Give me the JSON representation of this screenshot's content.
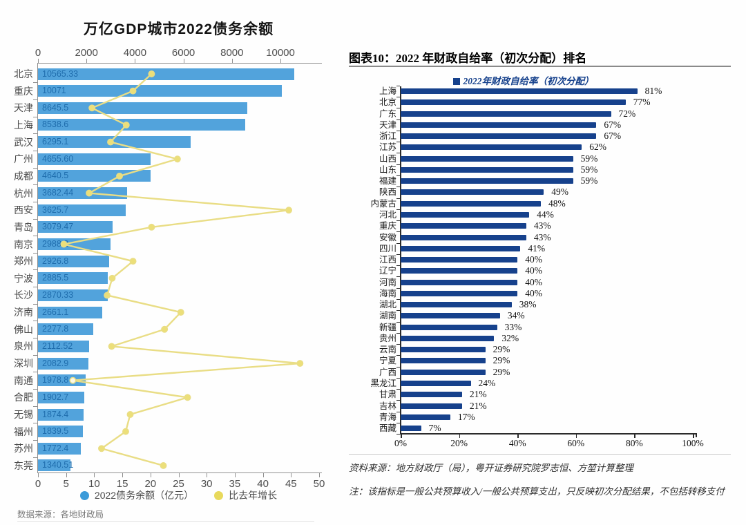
{
  "left_chart": {
    "title": "万亿GDP城市2022债务余额",
    "legend": {
      "debt": "2022债务余额（亿元）",
      "growth": "比去年增长"
    },
    "source": "数据来源：各地财政局",
    "colors": {
      "bar": "#52a3dc",
      "bar_label": "#1f6dad",
      "line": "#e9dd85",
      "point": "#ecdf79",
      "point_highlight": "#fcfae6",
      "legend_blue": "#3c9bd9",
      "legend_yellow": "#e8d95c"
    }
  },
  "right_chart": {
    "header": "图表10：2022 年财政自给率（初次分配）排名",
    "legend": "2022年财政自给率（初次分配）",
    "source": "资料来源：地方财政厅（局），粤开证券研究院罗志恒、方堃计算整理",
    "note": "注：该指标是一般公共预算收入/一般公共预算支出，只反映初次分配结果，不包括转移支付",
    "colors": {
      "bar": "#16418c",
      "text": "#16418c"
    }
  },
  "chart_data": [
    {
      "id": "debt-chart",
      "type": "bar",
      "orientation": "horizontal",
      "title": "万亿GDP城市2022债务余额",
      "categories": [
        "北京",
        "重庆",
        "天津",
        "上海",
        "武汉",
        "广州",
        "成都",
        "杭州",
        "西安",
        "青岛",
        "南京",
        "郑州",
        "宁波",
        "长沙",
        "济南",
        "佛山",
        "泉州",
        "深圳",
        "南通",
        "合肥",
        "无锡",
        "福州",
        "苏州",
        "东莞"
      ],
      "series": [
        {
          "name": "2022债务余额（亿元）",
          "type": "bar",
          "axis": "top",
          "values": [
            10565.33,
            10071,
            8645.5,
            8538.6,
            6295.1,
            4655.6,
            4640.5,
            3682.44,
            3625.7,
            3079.47,
            2988.2,
            2926.8,
            2885.5,
            2870.33,
            2661.1,
            2277.8,
            2112.52,
            2082.9,
            1978.8,
            1902.7,
            1874.4,
            1839.5,
            1772.4,
            1340.51
          ],
          "labels": [
            "10565.33",
            "10071",
            "8645.5",
            "8538.6",
            "6295.1",
            "4655.60",
            "4640.5",
            "3682.44",
            "3625.7",
            "3079.47",
            "2988.2",
            "2926.8",
            "2885.5",
            "2870.33",
            "2661.1",
            "2277.8",
            "2112.52",
            "2082.9",
            "1978.8",
            "1902.7",
            "1874.4",
            "1839.5",
            "1772.4",
            "1340.51"
          ]
        },
        {
          "name": "比去年增长",
          "type": "line",
          "axis": "bottom",
          "values": [
            20.2,
            16.9,
            9.6,
            15.7,
            12.9,
            24.8,
            14.5,
            9.1,
            44.6,
            20.2,
            4.6,
            16.9,
            13.2,
            12.3,
            25.4,
            22.5,
            13.1,
            46.6,
            6.2,
            26.6,
            16.4,
            15.6,
            11.3,
            22.3
          ]
        }
      ],
      "growth_highlight_index": 18,
      "top_axis": {
        "ticks": [
          0,
          2000,
          4000,
          6000,
          8000,
          10000
        ],
        "range": [
          0,
          11600
        ]
      },
      "bottom_axis": {
        "ticks": [
          0,
          5,
          10,
          15,
          20,
          25,
          30,
          35,
          40,
          45,
          50
        ],
        "range": [
          0,
          50
        ]
      },
      "grid": false,
      "legend_position": "bottom"
    },
    {
      "id": "fiscal-chart",
      "type": "bar",
      "orientation": "horizontal",
      "title": "2022年财政自给率（初次分配）",
      "categories": [
        "上海",
        "北京",
        "广东",
        "天津",
        "浙江",
        "江苏",
        "山西",
        "山东",
        "福建",
        "陕西",
        "内蒙古",
        "河北",
        "重庆",
        "安徽",
        "四川",
        "江西",
        "辽宁",
        "河南",
        "海南",
        "湖北",
        "湖南",
        "新疆",
        "贵州",
        "云南",
        "宁夏",
        "广西",
        "黑龙江",
        "甘肃",
        "吉林",
        "青海",
        "西藏"
      ],
      "values": [
        81,
        77,
        72,
        67,
        67,
        62,
        59,
        59,
        59,
        49,
        48,
        44,
        43,
        43,
        41,
        40,
        40,
        40,
        40,
        38,
        34,
        33,
        32,
        29,
        29,
        29,
        24,
        21,
        21,
        17,
        7
      ],
      "labels": [
        "81%",
        "77%",
        "72%",
        "67%",
        "67%",
        "62%",
        "59%",
        "59%",
        "59%",
        "49%",
        "48%",
        "44%",
        "43%",
        "43%",
        "41%",
        "40%",
        "40%",
        "40%",
        "40%",
        "38%",
        "34%",
        "33%",
        "32%",
        "29%",
        "29%",
        "29%",
        "24%",
        "21%",
        "21%",
        "17%",
        "7%"
      ],
      "x_axis": {
        "ticks": [
          "0%",
          "20%",
          "40%",
          "60%",
          "80%",
          "100%"
        ],
        "tick_values": [
          0,
          20,
          40,
          60,
          80,
          100
        ],
        "range": [
          0,
          100
        ]
      },
      "grid": false,
      "legend_position": "top"
    }
  ]
}
